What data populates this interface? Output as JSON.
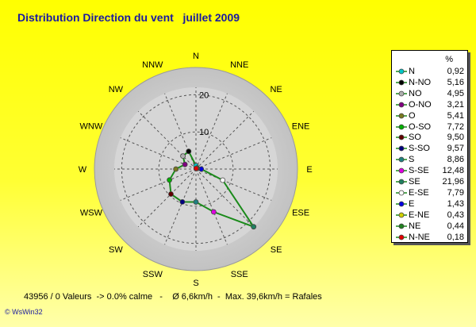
{
  "title": "Distribution Direction du vent   juillet 2009",
  "footer": "43956 / 0 Valeurs  -> 0.0% calme   -    Ø 6,6km/h  -  Max. 39,6km/h = Rafales",
  "brand": "© WsWin32",
  "legend_header": "%",
  "colors": {
    "series_line": "#1a8a1a",
    "title": "#1a1aa0",
    "grid": "#555555",
    "disc_outer": "#c9c9c9",
    "disc_inner": "#dadada"
  },
  "chart_data": {
    "type": "radar",
    "title": "Distribution Direction du vent   juillet 2009",
    "unit": "%",
    "r_ticks": [
      10,
      20
    ],
    "r_max": 25,
    "grid": true,
    "legend_position": "right",
    "compass_labels": [
      "N",
      "NNE",
      "NE",
      "ENE",
      "E",
      "ESE",
      "SE",
      "SSE",
      "S",
      "SSW",
      "SW",
      "WSW",
      "W",
      "WNW",
      "NW",
      "NNW"
    ],
    "series": [
      {
        "label": "N",
        "value": "0,92",
        "num": 0.92,
        "angle": 0,
        "color": "#00c8c8"
      },
      {
        "label": "N-NO",
        "value": "5,16",
        "num": 5.16,
        "angle": 337.5,
        "color": "#000000"
      },
      {
        "label": "NO",
        "value": "4,95",
        "num": 4.95,
        "angle": 315,
        "color": "#b0b0b0"
      },
      {
        "label": "O-NO",
        "value": "3,21",
        "num": 3.21,
        "angle": 292.5,
        "color": "#800080"
      },
      {
        "label": "O",
        "value": "5,41",
        "num": 5.41,
        "angle": 270,
        "color": "#7a7a20"
      },
      {
        "label": "O-SO",
        "value": "7,72",
        "num": 7.72,
        "angle": 247.5,
        "color": "#00b000"
      },
      {
        "label": "SO",
        "value": "9,50",
        "num": 9.5,
        "angle": 225,
        "color": "#600000"
      },
      {
        "label": "S-SO",
        "value": "9,57",
        "num": 9.57,
        "angle": 202.5,
        "color": "#000080"
      },
      {
        "label": "S",
        "value": "8,86",
        "num": 8.86,
        "angle": 180,
        "color": "#208080"
      },
      {
        "label": "S-SE",
        "value": "12,48",
        "num": 12.48,
        "angle": 157.5,
        "color": "#e000e0"
      },
      {
        "label": "SE",
        "value": "21,96",
        "num": 21.96,
        "angle": 135,
        "color": "#208060"
      },
      {
        "label": "E-SE",
        "value": "7,79",
        "num": 7.79,
        "angle": 112.5,
        "color": "#ffffff"
      },
      {
        "label": "E",
        "value": "1,43",
        "num": 1.43,
        "angle": 90,
        "color": "#0000e0"
      },
      {
        "label": "E-NE",
        "value": "0,43",
        "num": 0.43,
        "angle": 67.5,
        "color": "#d0d000"
      },
      {
        "label": "NE",
        "value": "0,44",
        "num": 0.44,
        "angle": 45,
        "color": "#208020"
      },
      {
        "label": "N-NE",
        "value": "0,18",
        "num": 0.18,
        "angle": 22.5,
        "color": "#e00000"
      }
    ]
  }
}
